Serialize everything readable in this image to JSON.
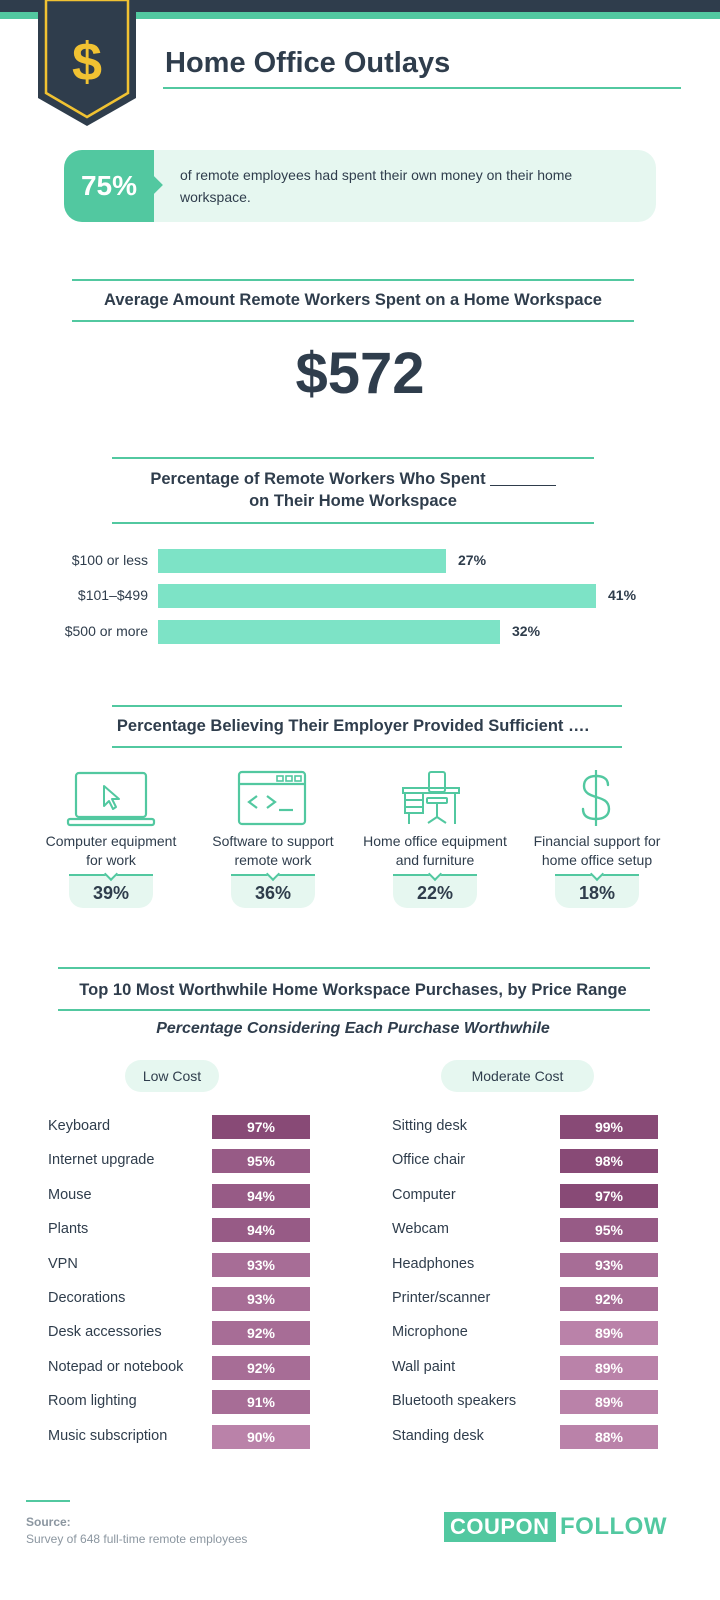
{
  "header": {
    "title": "Home Office Outlays",
    "badge_symbol": "$",
    "colors": {
      "navy": "#2f3d4c",
      "green": "#52c8a0",
      "gold": "#f1c232"
    }
  },
  "stat": {
    "percent": "75%",
    "text": "of remote employees had spent their own money on their home workspace."
  },
  "average": {
    "title": "Average Amount Remote Workers Spent on a Home Workspace",
    "amount": "$572"
  },
  "chart_data": [
    {
      "type": "bar",
      "orientation": "horizontal",
      "title_line1": "Percentage of Remote Workers Who Spent",
      "title_line2": "on Their Home Workspace",
      "categories": [
        "$100 or less",
        "$101–$499",
        "$500 or more"
      ],
      "values": [
        27,
        41,
        32
      ],
      "value_labels": [
        "27%",
        "41%",
        "32%"
      ],
      "bar_color": "#7de3c6"
    },
    {
      "type": "bar",
      "orientation": "horizontal",
      "title": "Low Cost",
      "categories": [
        "Keyboard",
        "Internet upgrade",
        "Mouse",
        "Plants",
        "VPN",
        "Decorations",
        "Desk accessories",
        "Notepad or notebook",
        "Room lighting",
        "Music subscription"
      ],
      "values": [
        97,
        95,
        94,
        94,
        93,
        93,
        92,
        92,
        91,
        90
      ],
      "value_labels": [
        "97%",
        "95%",
        "94%",
        "94%",
        "93%",
        "93%",
        "92%",
        "92%",
        "91%",
        "90%"
      ]
    },
    {
      "type": "bar",
      "orientation": "horizontal",
      "title": "Moderate Cost",
      "categories": [
        "Sitting desk",
        "Office chair",
        "Computer",
        "Webcam",
        "Headphones",
        "Printer/scanner",
        "Microphone",
        "Wall paint",
        "Bluetooth speakers",
        "Standing desk"
      ],
      "values": [
        99,
        98,
        97,
        95,
        93,
        92,
        89,
        89,
        89,
        88
      ],
      "value_labels": [
        "99%",
        "98%",
        "97%",
        "95%",
        "93%",
        "92%",
        "89%",
        "89%",
        "89%",
        "88%"
      ]
    }
  ],
  "employer": {
    "title": "Percentage Believing Their Employer Provided Sufficient ….",
    "items": [
      {
        "icon": "laptop-icon",
        "label_line1": "Computer equipment",
        "label_line2": "for work",
        "value": "39%"
      },
      {
        "icon": "code-window-icon",
        "label_line1": "Software to support",
        "label_line2": "remote work",
        "value": "36%"
      },
      {
        "icon": "desk-chair-icon",
        "label_line1": "Home office equipment",
        "label_line2": "and furniture",
        "value": "22%"
      },
      {
        "icon": "dollar-icon",
        "label_line1": "Financial support for",
        "label_line2": "home office setup",
        "value": "18%"
      }
    ]
  },
  "top10": {
    "title": "Top 10 Most Worthwhile Home Workspace Purchases, by Price Range",
    "subtitle": "Percentage Considering Each Purchase Worthwhile",
    "low_label": "Low Cost",
    "moderate_label": "Moderate Cost",
    "shade_colors": [
      "#884a76",
      "#975b86",
      "#a76d96",
      "#ba82a9"
    ]
  },
  "footer": {
    "source_title": "Source:",
    "source_text": "Survey of 648 full-time remote employees",
    "logo_part1": "COUPON",
    "logo_part2": "FOLLOW"
  }
}
